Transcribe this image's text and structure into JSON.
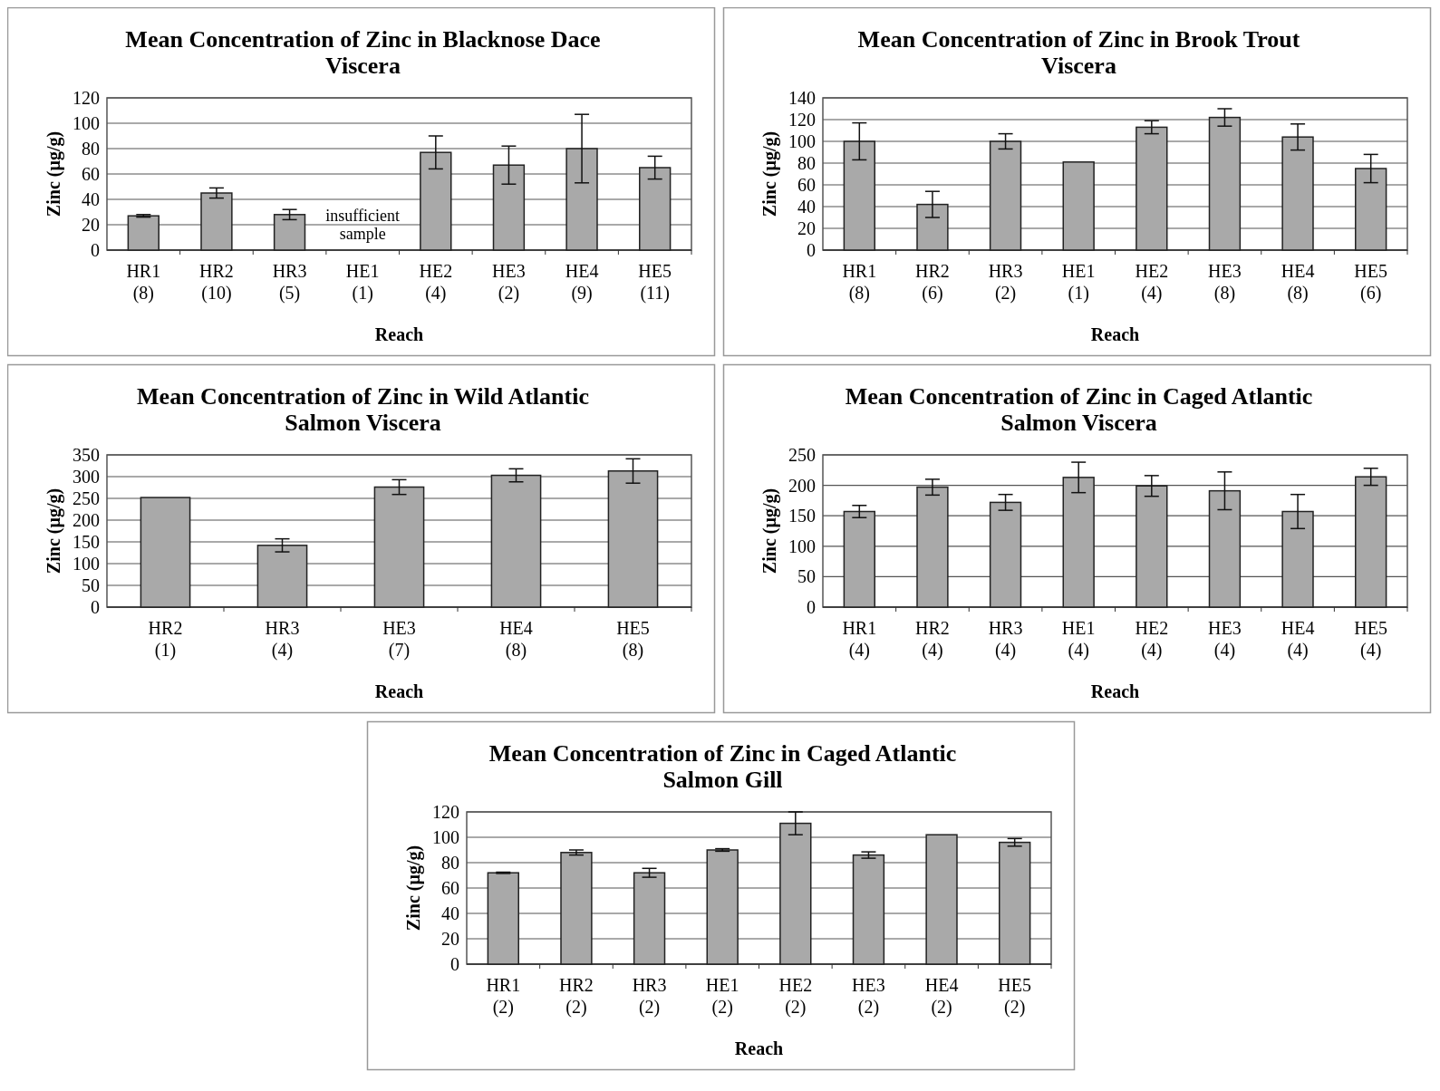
{
  "chart_data": [
    {
      "type": "bar",
      "title": "Mean Concentration of Zinc in Blacknose Dace Viscera",
      "xlabel": "Reach",
      "ylabel": "Zinc (µg/g)",
      "categories": [
        "HR1 (8)",
        "HR2 (10)",
        "HR3 (5)",
        "HE1 (1)",
        "HE2 (4)",
        "HE3 (2)",
        "HE4 (9)",
        "HE5 (11)"
      ],
      "values": [
        27,
        45,
        28,
        null,
        77,
        67,
        80,
        65
      ],
      "errors": [
        1,
        4,
        4,
        null,
        13,
        15,
        27,
        9
      ],
      "color": "#a9a9a9",
      "ylim": [
        0,
        120
      ],
      "yticks": [
        0,
        20,
        40,
        60,
        80,
        100,
        120
      ],
      "grid": "y",
      "annotations": [
        "insufficient sample"
      ]
    },
    {
      "type": "bar",
      "title": "Mean Concentration of Zinc in Brook Trout Viscera",
      "xlabel": "Reach",
      "ylabel": "Zinc (µg/g)",
      "categories": [
        "HR1 (8)",
        "HR2 (6)",
        "HR3 (2)",
        "HE1 (1)",
        "HE2 (4)",
        "HE3 (8)",
        "HE4 (8)",
        "HE5 (6)"
      ],
      "values": [
        100,
        42,
        100,
        81,
        113,
        122,
        104,
        75
      ],
      "errors": [
        17,
        12,
        7,
        null,
        6,
        8,
        12,
        13
      ],
      "color": "#a9a9a9",
      "ylim": [
        0,
        140
      ],
      "yticks": [
        0,
        20,
        40,
        60,
        80,
        100,
        120,
        140
      ],
      "grid": "y"
    },
    {
      "type": "bar",
      "title": "Mean Concentration of Zinc in Wild Atlantic Salmon Viscera",
      "xlabel": "Reach",
      "ylabel": "Zinc (µg/g)",
      "categories": [
        "HR2 (1)",
        "HR3 (4)",
        "HE3 (7)",
        "HE4 (8)",
        "HE5 (8)"
      ],
      "values": [
        252,
        142,
        276,
        303,
        313
      ],
      "errors": [
        null,
        15,
        17,
        15,
        28
      ],
      "color": "#a9a9a9",
      "ylim": [
        0,
        350
      ],
      "yticks": [
        0,
        50,
        100,
        150,
        200,
        250,
        300,
        350
      ],
      "grid": "y"
    },
    {
      "type": "bar",
      "title": "Mean Concentration of Zinc in Caged Atlantic Salmon Viscera",
      "xlabel": "Reach",
      "ylabel": "Zinc (µg/g)",
      "categories": [
        "HR1 (4)",
        "HR2 (4)",
        "HR3 (4)",
        "HE1 (4)",
        "HE2 (4)",
        "HE3 (4)",
        "HE4 (4)",
        "HE5 (4)"
      ],
      "values": [
        157,
        197,
        172,
        213,
        199,
        191,
        157,
        214
      ],
      "errors": [
        10,
        13,
        13,
        25,
        17,
        31,
        28,
        14
      ],
      "color": "#a9a9a9",
      "ylim": [
        0,
        250
      ],
      "yticks": [
        0,
        50,
        100,
        150,
        200,
        250
      ],
      "grid": "y"
    },
    {
      "type": "bar",
      "title": "Mean Concentration of Zinc in Caged Atlantic Salmon Gill",
      "xlabel": "Reach",
      "ylabel": "Zinc (µg/g)",
      "categories": [
        "HR1 (2)",
        "HR2 (2)",
        "HR3 (2)",
        "HE1 (2)",
        "HE2 (2)",
        "HE3 (2)",
        "HE4 (2)",
        "HE5 (2)"
      ],
      "values": [
        72,
        88,
        72,
        90,
        111,
        86,
        102,
        96
      ],
      "errors": [
        0.5,
        2,
        3.5,
        1,
        9,
        2.5,
        null,
        3
      ],
      "color": "#a9a9a9",
      "ylim": [
        0,
        120
      ],
      "yticks": [
        0,
        20,
        40,
        60,
        80,
        100,
        120
      ],
      "grid": "y"
    }
  ]
}
